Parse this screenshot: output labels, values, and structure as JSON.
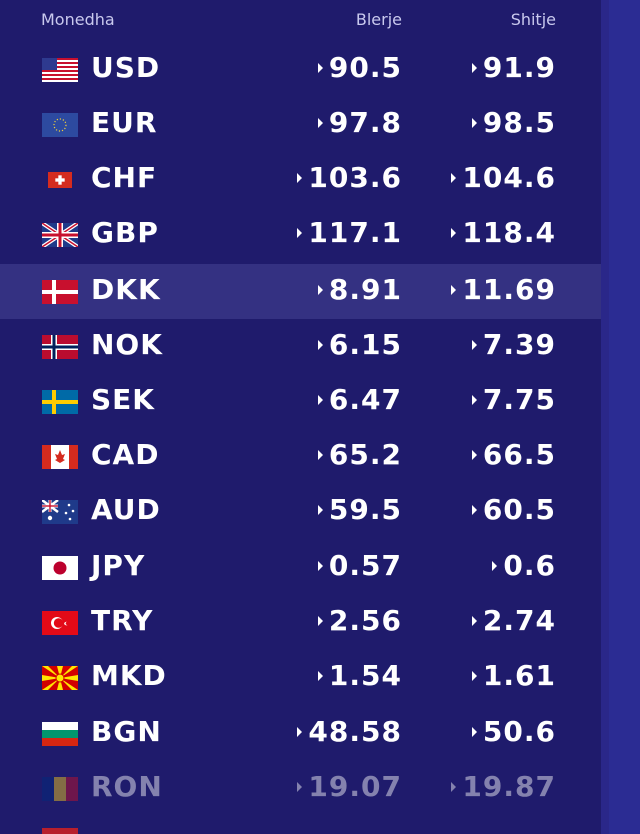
{
  "header": {
    "currency": "Monedha",
    "buy": "Blerje",
    "sell": "Shitje"
  },
  "rows": [
    {
      "code": "USD",
      "buy": "90.5",
      "sell": "91.9",
      "flag": "us-flag-icon"
    },
    {
      "code": "EUR",
      "buy": "97.8",
      "sell": "98.5",
      "flag": "eu-flag-icon"
    },
    {
      "code": "CHF",
      "buy": "103.6",
      "sell": "104.6",
      "flag": "ch-flag-icon"
    },
    {
      "code": "GBP",
      "buy": "117.1",
      "sell": "118.4",
      "flag": "gb-flag-icon"
    },
    {
      "code": "DKK",
      "buy": "8.91",
      "sell": "11.69",
      "flag": "dk-flag-icon",
      "highlighted": true
    },
    {
      "code": "NOK",
      "buy": "6.15",
      "sell": "7.39",
      "flag": "no-flag-icon"
    },
    {
      "code": "SEK",
      "buy": "6.47",
      "sell": "7.75",
      "flag": "se-flag-icon"
    },
    {
      "code": "CAD",
      "buy": "65.2",
      "sell": "66.5",
      "flag": "ca-flag-icon"
    },
    {
      "code": "AUD",
      "buy": "59.5",
      "sell": "60.5",
      "flag": "au-flag-icon"
    },
    {
      "code": "JPY",
      "buy": "0.57",
      "sell": "0.6",
      "flag": "jp-flag-icon"
    },
    {
      "code": "TRY",
      "buy": "2.56",
      "sell": "2.74",
      "flag": "tr-flag-icon"
    },
    {
      "code": "MKD",
      "buy": "1.54",
      "sell": "1.61",
      "flag": "mk-flag-icon"
    },
    {
      "code": "BGN",
      "buy": "48.58",
      "sell": "50.6",
      "flag": "bg-flag-icon"
    },
    {
      "code": "RON",
      "buy": "19.07",
      "sell": "19.87",
      "flag": "ro-flag-icon",
      "faded": true
    }
  ],
  "colors": {
    "background": "#1f1b6c",
    "highlight": "#343182",
    "text": "#ffffff",
    "header_text": "#c9c9ee"
  }
}
